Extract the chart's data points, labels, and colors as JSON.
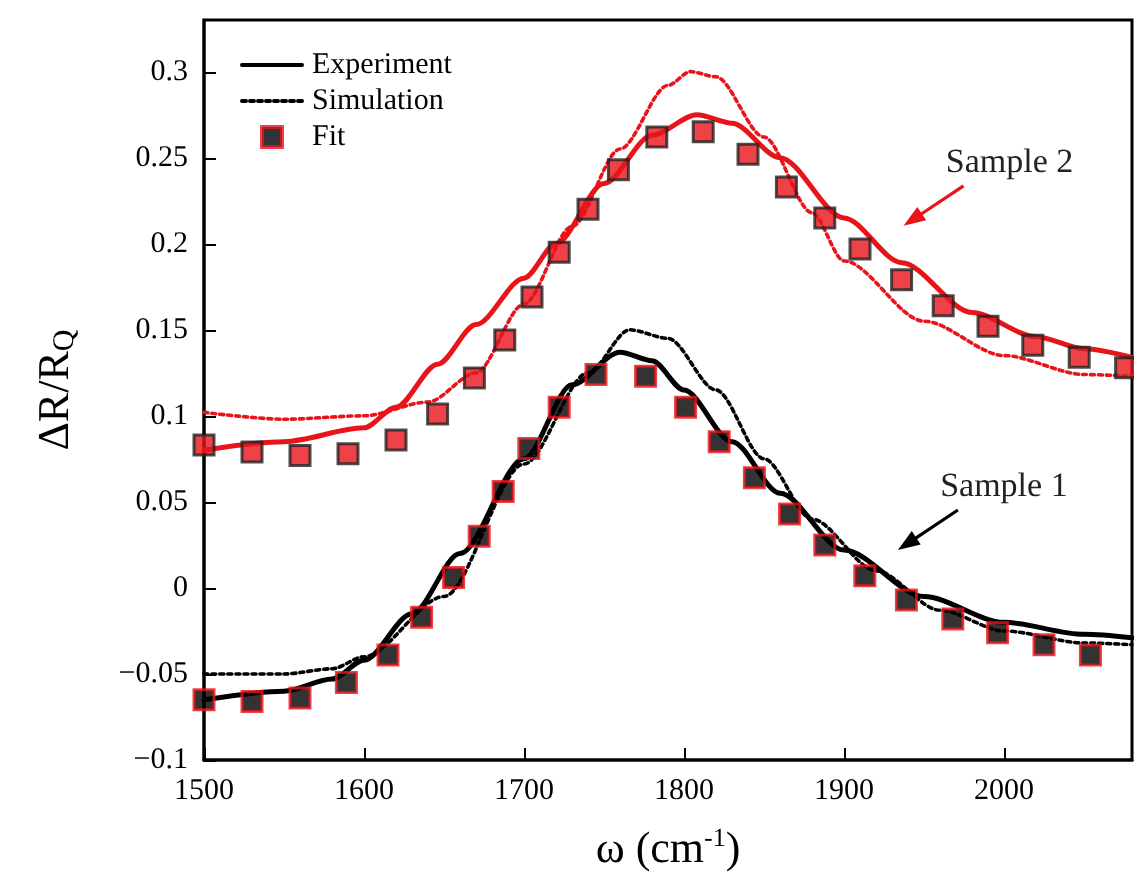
{
  "chart_data": {
    "type": "line",
    "xlabel": "ω (cm$^{-1}$)",
    "ylabel": "ΔR/R$_{Q}$",
    "xlim": [
      1500,
      2080
    ],
    "xticks": [
      1500,
      1600,
      1700,
      1800,
      1900,
      2000
    ],
    "ylim": [
      -0.1,
      0.33
    ],
    "yticks": [
      -0.1,
      -0.05,
      0,
      0.05,
      0.1,
      0.15,
      0.2,
      0.25,
      0.3
    ],
    "grid": false,
    "legend": "top left",
    "series": [
      {
        "name": "Experiment",
        "line_style": "solid",
        "color": "#000000",
        "x": [
          1500,
          1550,
          1580,
          1600,
          1630,
          1660,
          1700,
          1730,
          1760,
          1780,
          1800,
          1830,
          1860,
          1900,
          1950,
          2000,
          2050,
          2080
        ],
        "values": [
          -0.065,
          -0.06,
          -0.053,
          -0.042,
          -0.015,
          0.02,
          0.075,
          0.118,
          0.137,
          0.132,
          0.115,
          0.085,
          0.055,
          0.022,
          -0.005,
          -0.02,
          -0.027,
          -0.029
        ]
      },
      {
        "name": "Simulation",
        "line_style": "dotted",
        "color": "#000000",
        "x": [
          1500,
          1550,
          1580,
          1600,
          1650,
          1700,
          1740,
          1766,
          1790,
          1820,
          1850,
          1880,
          1920,
          1960,
          2000,
          2050,
          2080
        ],
        "values": [
          -0.05,
          -0.05,
          -0.047,
          -0.04,
          -0.005,
          0.072,
          0.125,
          0.15,
          0.145,
          0.115,
          0.075,
          0.04,
          0.01,
          -0.013,
          -0.025,
          -0.032,
          -0.033
        ]
      },
      {
        "name": "Fit",
        "type": "scatter",
        "marker": "square",
        "color": "#000000",
        "x": [
          1500,
          1530,
          1560,
          1589,
          1615,
          1636,
          1656,
          1672,
          1687,
          1703,
          1722,
          1745,
          1776,
          1801,
          1822,
          1844,
          1866,
          1888,
          1913,
          1939,
          1968,
          1996,
          2025,
          2054
        ],
        "values": [
          -0.065,
          -0.066,
          -0.064,
          -0.055,
          -0.039,
          -0.017,
          0.006,
          0.03,
          0.056,
          0.081,
          0.105,
          0.124,
          0.123,
          0.105,
          0.085,
          0.064,
          0.043,
          0.025,
          0.007,
          -0.007,
          -0.018,
          -0.026,
          -0.033,
          -0.039
        ]
      },
      {
        "line_style": "solid",
        "color": "#e8141a",
        "x": [
          1500,
          1550,
          1600,
          1620,
          1646,
          1670,
          1700,
          1720,
          1750,
          1780,
          1808,
          1830,
          1860,
          1900,
          1936,
          1980,
          2020,
          2050,
          2080
        ],
        "values": [
          0.08,
          0.085,
          0.093,
          0.105,
          0.13,
          0.153,
          0.18,
          0.2,
          0.235,
          0.263,
          0.275,
          0.27,
          0.25,
          0.215,
          0.189,
          0.16,
          0.146,
          0.139,
          0.134
        ]
      },
      {
        "line_style": "dotted",
        "color": "#e8141a",
        "x": [
          1500,
          1550,
          1600,
          1640,
          1670,
          1700,
          1730,
          1760,
          1790,
          1804,
          1820,
          1850,
          1880,
          1900,
          1950,
          2000,
          2050,
          2080
        ],
        "values": [
          0.102,
          0.098,
          0.1,
          0.108,
          0.125,
          0.165,
          0.21,
          0.255,
          0.292,
          0.3,
          0.297,
          0.262,
          0.218,
          0.19,
          0.155,
          0.135,
          0.124,
          0.123
        ]
      },
      {
        "type": "scatter",
        "marker": "square",
        "color": "#e8141a",
        "x": [
          1500,
          1530,
          1560,
          1590,
          1620,
          1646,
          1669,
          1688,
          1705,
          1722,
          1740,
          1759,
          1783,
          1812,
          1840,
          1864,
          1888,
          1910,
          1936,
          1962,
          1990,
          2018,
          2047,
          2076
        ],
        "values": [
          0.083,
          0.079,
          0.077,
          0.078,
          0.086,
          0.101,
          0.122,
          0.144,
          0.169,
          0.195,
          0.22,
          0.243,
          0.262,
          0.265,
          0.252,
          0.233,
          0.215,
          0.197,
          0.179,
          0.164,
          0.152,
          0.141,
          0.134,
          0.128
        ]
      }
    ],
    "annotations": [
      "Sample 2",
      "Sample 1"
    ]
  }
}
